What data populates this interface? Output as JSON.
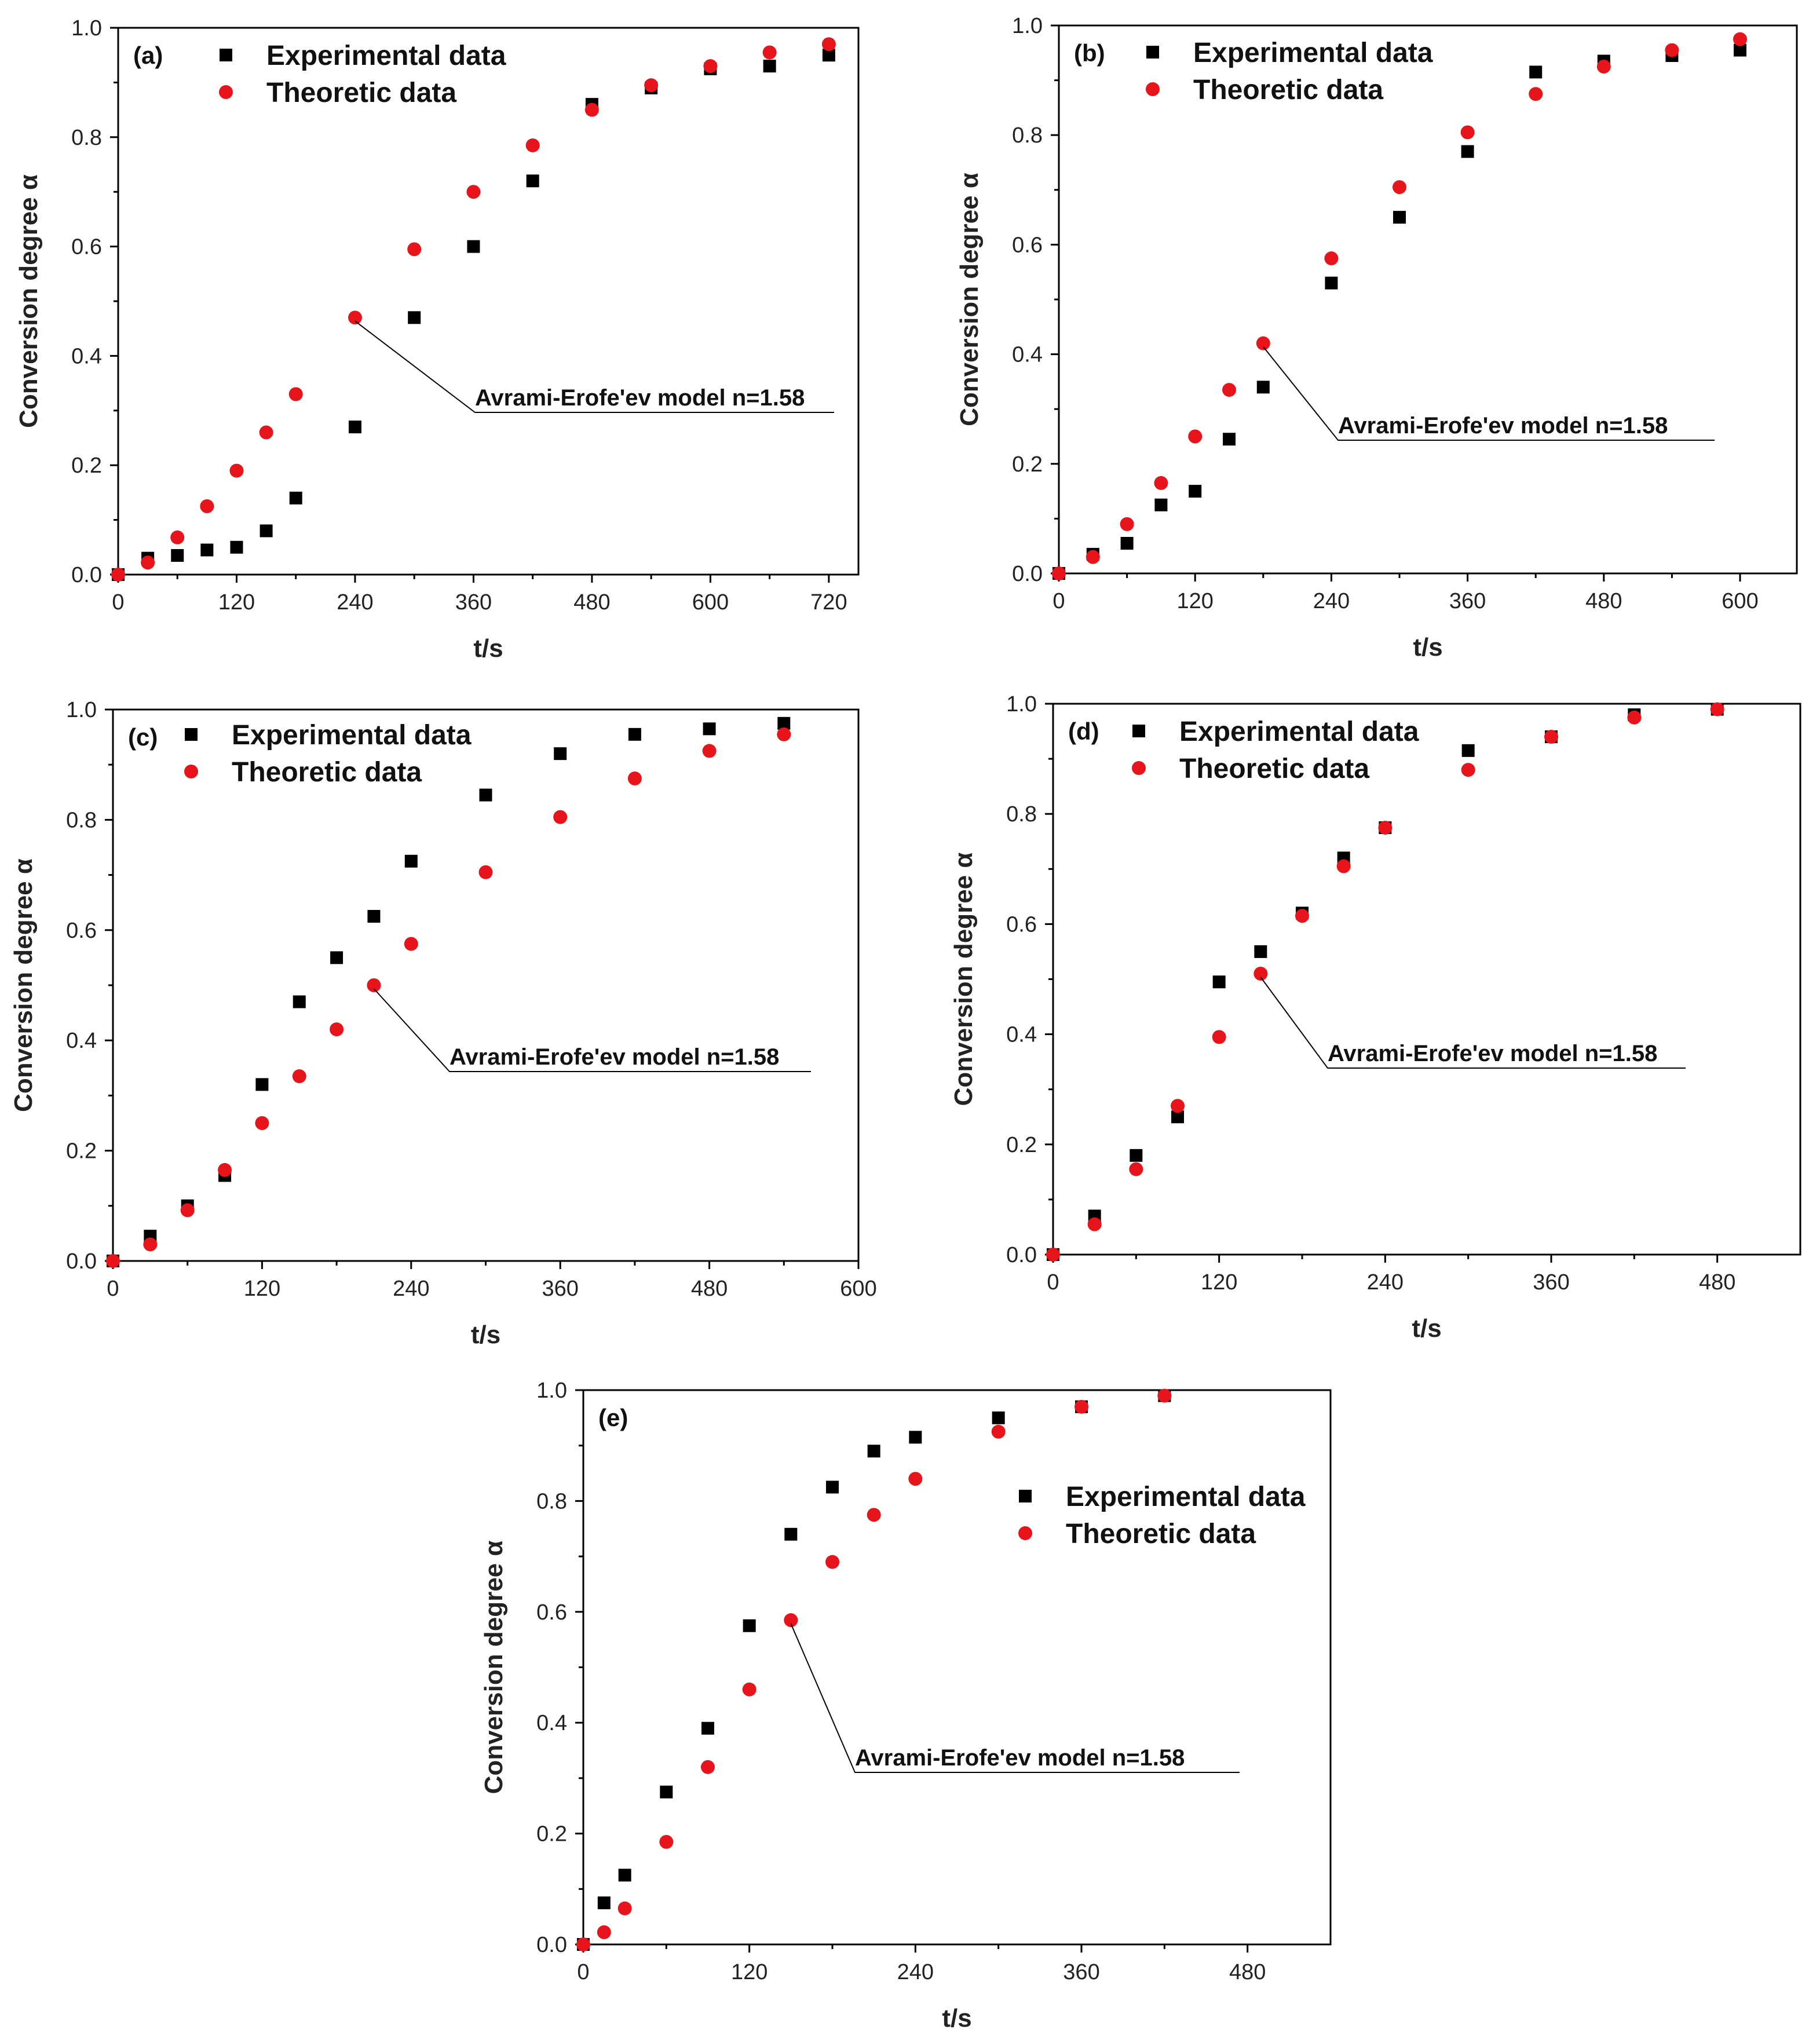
{
  "chart_data": [
    {
      "type": "scatter",
      "panel_label": "(a)",
      "xlabel": "t/s",
      "ylabel": "Conversion degree α",
      "xlim": [
        0,
        750
      ],
      "ylim": [
        0,
        1.0
      ],
      "xticks": [
        0,
        120,
        240,
        360,
        480,
        600,
        720
      ],
      "yticks": [
        0.0,
        0.2,
        0.4,
        0.6,
        0.8,
        1.0
      ],
      "legend_position": "top-left",
      "annotation": {
        "text": "Avrami-Erofe'ev model n=1.58",
        "x": 240,
        "y": 0.47
      },
      "series": [
        {
          "name": "Experimental data",
          "marker": "square",
          "color": "#000000",
          "x": [
            0,
            30,
            60,
            90,
            120,
            150,
            180,
            240,
            300,
            360,
            420,
            480,
            540,
            600,
            660,
            720
          ],
          "y": [
            0.0,
            0.03,
            0.035,
            0.045,
            0.05,
            0.08,
            0.14,
            0.27,
            0.47,
            0.6,
            0.72,
            0.86,
            0.89,
            0.925,
            0.93,
            0.95
          ]
        },
        {
          "name": "Theoretic data",
          "marker": "circle",
          "color": "#e8141c",
          "x": [
            0,
            30,
            60,
            90,
            120,
            150,
            180,
            240,
            300,
            360,
            420,
            480,
            540,
            600,
            660,
            720
          ],
          "y": [
            0.0,
            0.022,
            0.068,
            0.125,
            0.19,
            0.26,
            0.33,
            0.47,
            0.595,
            0.7,
            0.785,
            0.85,
            0.895,
            0.93,
            0.955,
            0.97
          ]
        }
      ]
    },
    {
      "type": "scatter",
      "panel_label": "(b)",
      "xlabel": "t/s",
      "ylabel": "Conversion degree α",
      "xlim": [
        0,
        650
      ],
      "ylim": [
        0,
        1.0
      ],
      "xticks": [
        0,
        120,
        240,
        360,
        480,
        600
      ],
      "yticks": [
        0.0,
        0.2,
        0.4,
        0.6,
        0.8,
        1.0
      ],
      "legend_position": "top-left",
      "annotation": {
        "text": "Avrami-Erofe'ev model n=1.58",
        "x": 180,
        "y": 0.42
      },
      "series": [
        {
          "name": "Experimental data",
          "marker": "square",
          "color": "#000000",
          "x": [
            0,
            30,
            60,
            90,
            120,
            150,
            180,
            240,
            300,
            360,
            420,
            480,
            540,
            600
          ],
          "y": [
            0.0,
            0.035,
            0.055,
            0.125,
            0.15,
            0.245,
            0.34,
            0.53,
            0.65,
            0.77,
            0.915,
            0.935,
            0.945,
            0.955
          ]
        },
        {
          "name": "Theoretic data",
          "marker": "circle",
          "color": "#e8141c",
          "x": [
            0,
            30,
            60,
            90,
            120,
            150,
            180,
            240,
            300,
            360,
            420,
            480,
            540,
            600
          ],
          "y": [
            0.0,
            0.03,
            0.09,
            0.165,
            0.25,
            0.335,
            0.42,
            0.575,
            0.705,
            0.805,
            0.875,
            0.925,
            0.955,
            0.975
          ]
        }
      ]
    },
    {
      "type": "scatter",
      "panel_label": "(c)",
      "xlabel": "t/s",
      "ylabel": "Conversion degree α",
      "xlim": [
        0,
        600
      ],
      "ylim": [
        0,
        1.0
      ],
      "xticks": [
        0,
        120,
        240,
        360,
        480,
        600
      ],
      "yticks": [
        0.0,
        0.2,
        0.4,
        0.6,
        0.8,
        1.0
      ],
      "legend_position": "top-left",
      "annotation": {
        "text": "Avrami-Erofe'ev model n=1.58",
        "x": 210,
        "y": 0.5
      },
      "series": [
        {
          "name": "Experimental data",
          "marker": "square",
          "color": "#000000",
          "x": [
            0,
            30,
            60,
            90,
            120,
            150,
            180,
            210,
            240,
            300,
            360,
            420,
            480,
            540
          ],
          "y": [
            0.0,
            0.045,
            0.1,
            0.155,
            0.32,
            0.47,
            0.55,
            0.625,
            0.725,
            0.845,
            0.92,
            0.955,
            0.965,
            0.975
          ]
        },
        {
          "name": "Theoretic data",
          "marker": "circle",
          "color": "#e8141c",
          "x": [
            0,
            30,
            60,
            90,
            120,
            150,
            180,
            210,
            240,
            300,
            360,
            420,
            480,
            540
          ],
          "y": [
            0.0,
            0.03,
            0.092,
            0.165,
            0.25,
            0.335,
            0.42,
            0.5,
            0.575,
            0.705,
            0.805,
            0.875,
            0.925,
            0.955
          ]
        }
      ]
    },
    {
      "type": "scatter",
      "panel_label": "(d)",
      "xlabel": "t/s",
      "ylabel": "Conversion degree α",
      "xlim": [
        0,
        540
      ],
      "ylim": [
        0,
        1.0
      ],
      "xticks": [
        0,
        120,
        240,
        360,
        480
      ],
      "yticks": [
        0.0,
        0.2,
        0.4,
        0.6,
        0.8,
        1.0
      ],
      "legend_position": "top-left",
      "annotation": {
        "text": "Avrami-Erofe'ev model n=1.58",
        "x": 150,
        "y": 0.51
      },
      "series": [
        {
          "name": "Experimental data",
          "marker": "square",
          "color": "#000000",
          "x": [
            0,
            30,
            60,
            90,
            120,
            150,
            180,
            210,
            240,
            300,
            360,
            420,
            480
          ],
          "y": [
            0.0,
            0.07,
            0.18,
            0.25,
            0.495,
            0.55,
            0.62,
            0.72,
            0.775,
            0.915,
            0.94,
            0.98,
            0.99
          ]
        },
        {
          "name": "Theoretic data",
          "marker": "circle",
          "color": "#e8141c",
          "x": [
            0,
            30,
            60,
            90,
            120,
            150,
            180,
            210,
            240,
            300,
            360,
            420,
            480
          ],
          "y": [
            0.0,
            0.055,
            0.155,
            0.27,
            0.395,
            0.51,
            0.615,
            0.705,
            0.775,
            0.88,
            0.94,
            0.975,
            0.99
          ]
        }
      ]
    },
    {
      "type": "scatter",
      "panel_label": "(e)",
      "xlabel": "t/s",
      "ylabel": "Conversion degree α",
      "xlim": [
        0,
        540
      ],
      "ylim": [
        0,
        1.0
      ],
      "xticks": [
        0,
        120,
        240,
        360,
        480
      ],
      "yticks": [
        0.0,
        0.2,
        0.4,
        0.6,
        0.8,
        1.0
      ],
      "legend_position": "center-right",
      "annotation": {
        "text": "Avrami-Erofe'ev model n=1.58",
        "x": 150,
        "y": 0.585
      },
      "series": [
        {
          "name": "Experimental data",
          "marker": "square",
          "color": "#000000",
          "x": [
            0,
            15,
            30,
            60,
            90,
            120,
            150,
            180,
            210,
            240,
            300,
            360,
            420
          ],
          "y": [
            0.0,
            0.075,
            0.125,
            0.275,
            0.39,
            0.575,
            0.74,
            0.825,
            0.89,
            0.915,
            0.95,
            0.97,
            0.99
          ]
        },
        {
          "name": "Theoretic data",
          "marker": "circle",
          "color": "#e8141c",
          "x": [
            0,
            15,
            30,
            60,
            90,
            120,
            150,
            180,
            210,
            240,
            300,
            360,
            420
          ],
          "y": [
            0.0,
            0.022,
            0.065,
            0.185,
            0.32,
            0.46,
            0.585,
            0.69,
            0.775,
            0.84,
            0.925,
            0.97,
            0.99
          ]
        }
      ]
    }
  ]
}
